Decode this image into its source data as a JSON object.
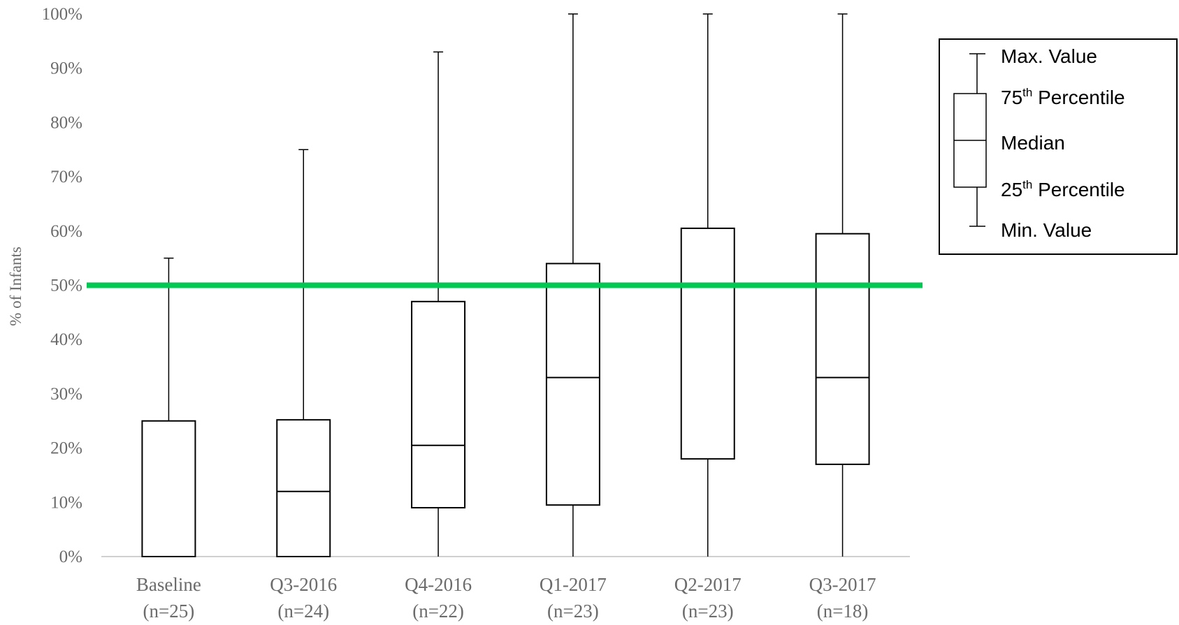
{
  "chart_data": {
    "type": "box",
    "title": "",
    "xlabel": "",
    "ylabel": "% of Infants",
    "ylim": [
      0,
      100
    ],
    "yticks": [
      "0%",
      "10%",
      "20%",
      "30%",
      "40%",
      "50%",
      "60%",
      "70%",
      "80%",
      "90%",
      "100%"
    ],
    "categories": [
      {
        "name": "Baseline",
        "n": "(n=25)"
      },
      {
        "name": "Q3-2016",
        "n": "(n=24)"
      },
      {
        "name": "Q4-2016",
        "n": "(n=22)"
      },
      {
        "name": "Q1-2017",
        "n": "(n=23)"
      },
      {
        "name": "Q2-2017",
        "n": "(n=23)"
      },
      {
        "name": "Q3-2017",
        "n": "(n=18)"
      }
    ],
    "boxes": [
      {
        "min": 0,
        "q1": 0,
        "median": 0,
        "q3": 25,
        "max": 55
      },
      {
        "min": 0,
        "q1": 0,
        "median": 12,
        "q3": 25.2,
        "max": 75
      },
      {
        "min": 0,
        "q1": 9,
        "median": 20.5,
        "q3": 47,
        "max": 93
      },
      {
        "min": 0,
        "q1": 9.5,
        "median": 33,
        "q3": 54,
        "max": 100
      },
      {
        "min": 0,
        "q1": 18,
        "median": 50,
        "q3": 60.5,
        "max": 100
      },
      {
        "min": 0,
        "q1": 17,
        "median": 33,
        "q3": 59.5,
        "max": 100
      }
    ],
    "reference_line": {
      "value": 50,
      "color": "#00c853"
    },
    "grid": false,
    "legend": {
      "position": "top-right",
      "items": [
        {
          "key": "max",
          "main": "Max. Value",
          "sup": ""
        },
        {
          "key": "q3",
          "main": "75",
          "sup": "th",
          "rest": " Percentile"
        },
        {
          "key": "median",
          "main": "Median",
          "sup": ""
        },
        {
          "key": "q1",
          "main": "25",
          "sup": "th",
          "rest": " Percentile"
        },
        {
          "key": "min",
          "main": "Min. Value",
          "sup": ""
        }
      ]
    }
  }
}
